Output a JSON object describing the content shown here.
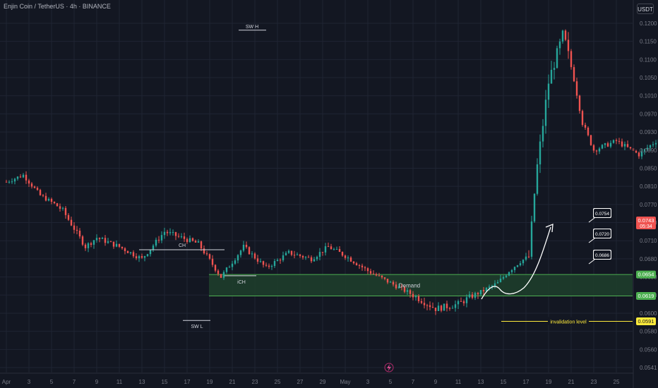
{
  "header": {
    "symbol_title": "Enjin Coin / TetherUS · 4h · BINANCE",
    "currency_button": "USDT"
  },
  "colors": {
    "background": "#131722",
    "grid": "#1f2433",
    "up": "#26a69a",
    "down": "#ef5350",
    "demand_fill": "#1e3d2b",
    "demand_border": "#4caf50",
    "invalidation": "#ffeb3b",
    "axis_text": "#787b86"
  },
  "chart_data": {
    "type": "candlestick",
    "y_axis": {
      "range": [
        0.053,
        0.1225
      ],
      "tick_labels": [
        "0.1200",
        "0.1150",
        "0.1100",
        "0.1050",
        "0.1010",
        "0.0970",
        "0.0930",
        "0.0890",
        "0.0850",
        "0.0810",
        "0.0770",
        "0.0740",
        "0.0710",
        "0.0680",
        "0.0650",
        "0.0620",
        "0.0600",
        "0.0580",
        "0.0560",
        "0.0541"
      ]
    },
    "x_axis": {
      "tick_labels": [
        "Apr",
        "3",
        "5",
        "7",
        "9",
        "11",
        "13",
        "15",
        "17",
        "19",
        "21",
        "23",
        "25",
        "27",
        "29",
        "May",
        "3",
        "5",
        "7",
        "9",
        "11",
        "13",
        "15",
        "17",
        "19",
        "21",
        "23",
        "25"
      ]
    },
    "price_path": [
      [
        0,
        0.082
      ],
      [
        1.5,
        0.0835
      ],
      [
        3,
        0.079
      ],
      [
        5,
        0.076
      ],
      [
        7,
        0.07
      ],
      [
        8,
        0.0715
      ],
      [
        10,
        0.07
      ],
      [
        12,
        0.068
      ],
      [
        14,
        0.0725
      ],
      [
        17,
        0.0705
      ],
      [
        19,
        0.065
      ],
      [
        21,
        0.07
      ],
      [
        23,
        0.0665
      ],
      [
        25,
        0.069
      ],
      [
        27,
        0.068
      ],
      [
        28.5,
        0.07
      ],
      [
        30,
        0.0685
      ],
      [
        32,
        0.066
      ],
      [
        34,
        0.064
      ],
      [
        36,
        0.062
      ],
      [
        38,
        0.0605
      ],
      [
        40,
        0.061
      ],
      [
        42,
        0.0625
      ],
      [
        43.5,
        0.064
      ],
      [
        44.5,
        0.066
      ],
      [
        45.5,
        0.0676
      ],
      [
        46.3,
        0.0684
      ],
      [
        47,
        0.0855
      ],
      [
        48,
        0.104
      ],
      [
        49.3,
        0.117
      ],
      [
        51,
        0.095
      ],
      [
        52,
        0.089
      ],
      [
        54,
        0.091
      ],
      [
        56,
        0.088
      ],
      [
        58,
        0.092
      ],
      [
        60,
        0.0915
      ],
      [
        62,
        0.091
      ],
      [
        64,
        0.086
      ],
      [
        66,
        0.084
      ],
      [
        68,
        0.087
      ],
      [
        70,
        0.083
      ],
      [
        72,
        0.086
      ],
      [
        74,
        0.086
      ],
      [
        76,
        0.085
      ],
      [
        78,
        0.084
      ],
      [
        79,
        0.082
      ],
      [
        80,
        0.08
      ],
      [
        81,
        0.076
      ],
      [
        82,
        0.074
      ],
      [
        83,
        0.0743
      ]
    ],
    "annotations": [
      {
        "text": "SW H",
        "price": 0.1181
      },
      {
        "text": "CH",
        "price": 0.0695
      },
      {
        "text": "iCH",
        "price": 0.0652
      },
      {
        "text": "SW L",
        "price": 0.0592
      },
      {
        "text": "Demand",
        "price_range": [
          0.0619,
          0.0654
        ]
      },
      {
        "text": "invalidation level",
        "price": 0.0591
      }
    ],
    "targets": [
      "0.0754",
      "0.0720",
      "0.0686"
    ],
    "price_axis_labels": [
      {
        "value": "0.0743",
        "countdown": "05:34",
        "color": "#ef5350"
      },
      {
        "value": "0.0654",
        "color": "#4caf50"
      },
      {
        "value": "0.0619",
        "color": "#4caf50"
      },
      {
        "value": "0.0591",
        "color": "#ffeb3b"
      }
    ]
  }
}
